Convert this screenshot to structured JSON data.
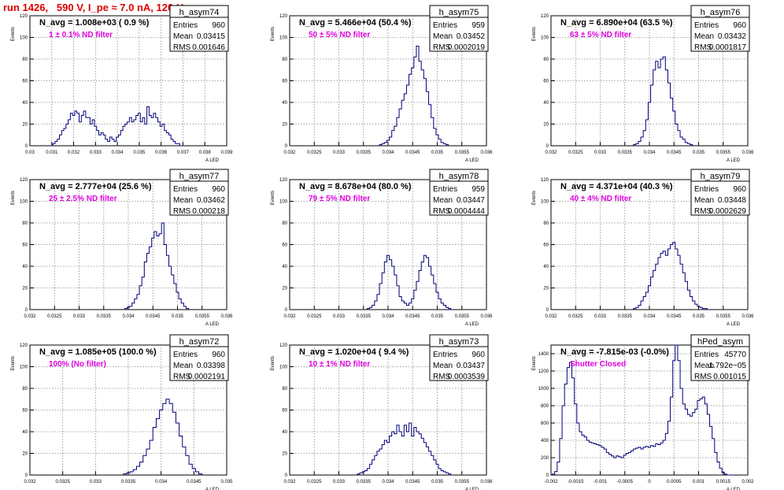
{
  "page": {
    "title": "run 1426,   590 V, I_pe ≈ 7.0 nA, 120 Hz"
  },
  "colors": {
    "hist_line": "#00007a",
    "label_magenta": "#e000e0",
    "title_red": "#e00000",
    "grid": "#888888"
  },
  "chart_data": [
    {
      "type": "histogram",
      "hist_name": "h_asym74",
      "navg_label": "N_avg = 1.008e+03 ( 0.9 %)",
      "filter_label": "1 ± 0.1% ND filter",
      "ylabel": "Events",
      "xlabel": "A_LED",
      "xlim": [
        0.03,
        0.039
      ],
      "ylim": [
        0,
        120
      ],
      "xticks": [
        0.03,
        0.031,
        0.032,
        0.033,
        0.034,
        0.035,
        0.036,
        0.037,
        0.038,
        0.039
      ],
      "xtick_labels": [
        "0.03",
        "0.031",
        "0.032",
        "0.033",
        "0.034",
        "0.035",
        "0.036",
        "0.037",
        "0.038",
        "0.039"
      ],
      "yticks": [
        0,
        20,
        40,
        60,
        80,
        100,
        120
      ],
      "stats": {
        "Entries": "960",
        "Mean": "0.03415",
        "RMS": "0.001646"
      },
      "x": [
        0.031,
        0.0311,
        0.0312,
        0.0313,
        0.0314,
        0.0315,
        0.0316,
        0.0317,
        0.0318,
        0.0319,
        0.032,
        0.0321,
        0.0322,
        0.0323,
        0.0324,
        0.0325,
        0.0326,
        0.0327,
        0.0328,
        0.0329,
        0.033,
        0.0331,
        0.0332,
        0.0333,
        0.0334,
        0.0335,
        0.0336,
        0.0337,
        0.0338,
        0.0339,
        0.034,
        0.0341,
        0.0342,
        0.0343,
        0.0344,
        0.0345,
        0.0346,
        0.0347,
        0.0348,
        0.0349,
        0.035,
        0.0351,
        0.0352,
        0.0353,
        0.0354,
        0.0355,
        0.0356,
        0.0357,
        0.0358,
        0.0359,
        0.036,
        0.0361,
        0.0362,
        0.0363,
        0.0364,
        0.0365,
        0.0366,
        0.0367,
        0.0368,
        0.0369,
        0.037
      ],
      "values": [
        0,
        2,
        4,
        6,
        10,
        14,
        16,
        20,
        24,
        30,
        28,
        32,
        30,
        22,
        28,
        32,
        26,
        26,
        20,
        24,
        18,
        14,
        10,
        12,
        10,
        6,
        4,
        8,
        6,
        4,
        8,
        10,
        14,
        18,
        20,
        22,
        26,
        22,
        24,
        28,
        30,
        22,
        26,
        20,
        36,
        28,
        26,
        30,
        26,
        22,
        18,
        20,
        14,
        12,
        10,
        6,
        4,
        2,
        2,
        0,
        0
      ]
    },
    {
      "type": "histogram",
      "hist_name": "h_asym75",
      "navg_label": "N_avg = 5.466e+04 (50.4 %)",
      "filter_label": "50 ± 5% ND filter",
      "ylabel": "Events",
      "xlabel": "A_LED",
      "xlim": [
        0.032,
        0.036
      ],
      "ylim": [
        0,
        120
      ],
      "xticks": [
        0.032,
        0.0325,
        0.033,
        0.0335,
        0.034,
        0.0345,
        0.035,
        0.0355,
        0.036
      ],
      "xtick_labels": [
        "0.032",
        "0.0325",
        "0.033",
        "0.0335",
        "0.034",
        "0.0345",
        "0.035",
        "0.0355",
        "0.036"
      ],
      "yticks": [
        0,
        20,
        40,
        60,
        80,
        100,
        120
      ],
      "stats": {
        "Entries": "959",
        "Mean": "0.03452",
        "RMS": "0.0002019"
      },
      "x": [
        0.03385,
        0.0339,
        0.03395,
        0.034,
        0.03405,
        0.0341,
        0.03415,
        0.0342,
        0.03425,
        0.0343,
        0.03435,
        0.0344,
        0.03445,
        0.0345,
        0.03455,
        0.0346,
        0.03465,
        0.0347,
        0.03475,
        0.0348,
        0.03485,
        0.0349,
        0.03495,
        0.035,
        0.03505,
        0.0351,
        0.03515,
        0.0352
      ],
      "values": [
        1,
        2,
        3,
        5,
        8,
        14,
        18,
        26,
        34,
        42,
        48,
        56,
        66,
        72,
        82,
        92,
        78,
        70,
        62,
        50,
        38,
        26,
        16,
        10,
        6,
        3,
        2,
        1
      ]
    },
    {
      "type": "histogram",
      "hist_name": "h_asym76",
      "navg_label": "N_avg = 6.890e+04 (63.5 %)",
      "filter_label": "63 ± 5% ND filter",
      "ylabel": "Events",
      "xlabel": "A_LED",
      "xlim": [
        0.032,
        0.036
      ],
      "ylim": [
        0,
        120
      ],
      "xticks": [
        0.032,
        0.0325,
        0.033,
        0.0335,
        0.034,
        0.0345,
        0.035,
        0.0355,
        0.036
      ],
      "xtick_labels": [
        "0.032",
        "0.0325",
        "0.033",
        "0.0335",
        "0.034",
        "0.0345",
        "0.035",
        "0.0355",
        "0.036"
      ],
      "yticks": [
        0,
        20,
        40,
        60,
        80,
        100,
        120
      ],
      "stats": {
        "Entries": "960",
        "Mean": "0.03432",
        "RMS": "0.0001817"
      },
      "x": [
        0.0337,
        0.03375,
        0.0338,
        0.03385,
        0.0339,
        0.03395,
        0.034,
        0.03405,
        0.0341,
        0.03415,
        0.0342,
        0.03425,
        0.0343,
        0.03435,
        0.0344,
        0.03445,
        0.0345,
        0.03455,
        0.0346,
        0.03465,
        0.0347,
        0.03475,
        0.0348,
        0.03485
      ],
      "values": [
        1,
        2,
        4,
        8,
        14,
        24,
        40,
        56,
        70,
        78,
        72,
        80,
        82,
        70,
        58,
        44,
        32,
        20,
        14,
        8,
        6,
        3,
        2,
        1
      ]
    },
    {
      "type": "histogram",
      "hist_name": "h_asym77",
      "navg_label": "N_avg = 2.777e+04 (25.6 %)",
      "filter_label": "25 ± 2.5% ND filter",
      "ylabel": "Events",
      "xlabel": "A_LED",
      "xlim": [
        0.032,
        0.036
      ],
      "ylim": [
        0,
        120
      ],
      "xticks": [
        0.032,
        0.0325,
        0.033,
        0.0335,
        0.034,
        0.0345,
        0.035,
        0.0355,
        0.036
      ],
      "xtick_labels": [
        "0.032",
        "0.0325",
        "0.033",
        "0.0335",
        "0.034",
        "0.0345",
        "0.035",
        "0.0355",
        "0.036"
      ],
      "yticks": [
        0,
        20,
        40,
        60,
        80,
        100,
        120
      ],
      "stats": {
        "Entries": "960",
        "Mean": "0.03462",
        "RMS": "0.000218"
      },
      "x": [
        0.03395,
        0.034,
        0.03405,
        0.0341,
        0.03415,
        0.0342,
        0.03425,
        0.0343,
        0.03435,
        0.0344,
        0.03445,
        0.0345,
        0.03455,
        0.0346,
        0.03465,
        0.0347,
        0.03475,
        0.0348,
        0.03485,
        0.0349,
        0.03495,
        0.035,
        0.03505,
        0.0351,
        0.03515,
        0.0352
      ],
      "values": [
        1,
        2,
        3,
        6,
        10,
        14,
        22,
        30,
        44,
        52,
        58,
        66,
        72,
        68,
        70,
        80,
        60,
        50,
        40,
        32,
        24,
        16,
        10,
        6,
        3,
        1
      ]
    },
    {
      "type": "histogram",
      "hist_name": "h_asym78",
      "navg_label": "N_avg = 8.678e+04 (80.0 %)",
      "filter_label": "79 ± 5% ND filter",
      "ylabel": "Events",
      "xlabel": "A_LED",
      "xlim": [
        0.032,
        0.036
      ],
      "ylim": [
        0,
        120
      ],
      "xticks": [
        0.032,
        0.0325,
        0.033,
        0.0335,
        0.034,
        0.0345,
        0.035,
        0.0355,
        0.036
      ],
      "xtick_labels": [
        "0.032",
        "0.0325",
        "0.033",
        "0.0335",
        "0.034",
        "0.0345",
        "0.035",
        "0.0355",
        "0.036"
      ],
      "yticks": [
        0,
        20,
        40,
        60,
        80,
        100,
        120
      ],
      "stats": {
        "Entries": "959",
        "Mean": "0.03447",
        "RMS": "0.0004444"
      },
      "x": [
        0.0336,
        0.03365,
        0.0337,
        0.03375,
        0.0338,
        0.03385,
        0.0339,
        0.03395,
        0.034,
        0.03405,
        0.0341,
        0.03415,
        0.0342,
        0.03425,
        0.0343,
        0.03435,
        0.0344,
        0.03445,
        0.0345,
        0.03455,
        0.0346,
        0.03465,
        0.0347,
        0.03475,
        0.0348,
        0.03485,
        0.0349,
        0.03495,
        0.035,
        0.03505,
        0.0351,
        0.03515,
        0.0352,
        0.03525,
        0.0353
      ],
      "values": [
        1,
        2,
        4,
        8,
        14,
        24,
        34,
        44,
        50,
        46,
        40,
        32,
        22,
        12,
        8,
        6,
        4,
        6,
        10,
        18,
        26,
        36,
        44,
        50,
        48,
        40,
        32,
        24,
        16,
        10,
        6,
        4,
        2,
        1,
        0
      ]
    },
    {
      "type": "histogram",
      "hist_name": "h_asym79",
      "navg_label": "N_avg = 4.371e+04 (40.3 %)",
      "filter_label": "40 ± 4% ND filter",
      "ylabel": "Events",
      "xlabel": "A_LED",
      "xlim": [
        0.032,
        0.036
      ],
      "ylim": [
        0,
        120
      ],
      "xticks": [
        0.032,
        0.0325,
        0.033,
        0.0335,
        0.034,
        0.0345,
        0.035,
        0.0355,
        0.036
      ],
      "xtick_labels": [
        "0.032",
        "0.0325",
        "0.033",
        "0.0335",
        "0.034",
        "0.0345",
        "0.035",
        "0.0355",
        "0.036"
      ],
      "yticks": [
        0,
        20,
        40,
        60,
        80,
        100,
        120
      ],
      "stats": {
        "Entries": "960",
        "Mean": "0.03448",
        "RMS": "0.0002629"
      },
      "x": [
        0.0337,
        0.03375,
        0.0338,
        0.03385,
        0.0339,
        0.03395,
        0.034,
        0.03405,
        0.0341,
        0.03415,
        0.0342,
        0.03425,
        0.0343,
        0.03435,
        0.0344,
        0.03445,
        0.0345,
        0.03455,
        0.0346,
        0.03465,
        0.0347,
        0.03475,
        0.0348,
        0.03485,
        0.0349,
        0.03495,
        0.035,
        0.03505,
        0.0351,
        0.03515,
        0.0352
      ],
      "values": [
        1,
        2,
        4,
        8,
        12,
        16,
        22,
        30,
        36,
        42,
        48,
        52,
        54,
        50,
        56,
        60,
        62,
        56,
        50,
        42,
        34,
        26,
        18,
        12,
        8,
        5,
        3,
        2,
        1,
        1,
        0
      ]
    },
    {
      "type": "histogram",
      "hist_name": "h_asym72",
      "navg_label": "N_avg = 1.085e+05 (100.0 %)",
      "filter_label": "100% (No filter)",
      "ylabel": "Events",
      "xlabel": "A_LED",
      "xlim": [
        0.032,
        0.035
      ],
      "ylim": [
        0,
        120
      ],
      "xticks": [
        0.032,
        0.0325,
        0.033,
        0.0335,
        0.034,
        0.0345,
        0.035
      ],
      "xtick_labels": [
        "0.032",
        "0.0325",
        "0.033",
        "0.0335",
        "0.034",
        "0.0345",
        "0.035"
      ],
      "yticks": [
        0,
        20,
        40,
        60,
        80,
        100,
        120
      ],
      "stats": {
        "Entries": "960",
        "Mean": "0.03398",
        "RMS": "0.0002191"
      },
      "x": [
        0.03345,
        0.0335,
        0.03355,
        0.0336,
        0.03365,
        0.0337,
        0.03375,
        0.0338,
        0.03385,
        0.0339,
        0.03395,
        0.034,
        0.03405,
        0.0341,
        0.03415,
        0.0342,
        0.03425,
        0.0343,
        0.03435,
        0.0344,
        0.03445,
        0.0345,
        0.03455,
        0.0346
      ],
      "values": [
        1,
        2,
        3,
        5,
        8,
        12,
        18,
        24,
        32,
        44,
        52,
        60,
        66,
        70,
        66,
        58,
        48,
        36,
        26,
        18,
        10,
        6,
        3,
        1
      ]
    },
    {
      "type": "histogram",
      "hist_name": "h_asym73",
      "navg_label": "N_avg = 1.020e+04 ( 9.4 %)",
      "filter_label": "10 ± 1% ND filter",
      "ylabel": "Events",
      "xlabel": "A_LED",
      "xlim": [
        0.032,
        0.036
      ],
      "ylim": [
        0,
        120
      ],
      "xticks": [
        0.032,
        0.0325,
        0.033,
        0.0335,
        0.034,
        0.0345,
        0.035,
        0.0355,
        0.036
      ],
      "xtick_labels": [
        "0.032",
        "0.0325",
        "0.033",
        "0.0335",
        "0.034",
        "0.0345",
        "0.035",
        "0.0355",
        "0.036"
      ],
      "yticks": [
        0,
        20,
        40,
        60,
        80,
        100,
        120
      ],
      "stats": {
        "Entries": "960",
        "Mean": "0.03437",
        "RMS": "0.0003539"
      },
      "x": [
        0.0334,
        0.03345,
        0.0335,
        0.03355,
        0.0336,
        0.03365,
        0.0337,
        0.03375,
        0.0338,
        0.03385,
        0.0339,
        0.03395,
        0.034,
        0.03405,
        0.0341,
        0.03415,
        0.0342,
        0.03425,
        0.0343,
        0.03435,
        0.0344,
        0.03445,
        0.0345,
        0.03455,
        0.0346,
        0.03465,
        0.0347,
        0.03475,
        0.0348,
        0.03485,
        0.0349,
        0.03495,
        0.035,
        0.03505,
        0.0351,
        0.03515,
        0.0352,
        0.03525,
        0.0353
      ],
      "values": [
        1,
        2,
        3,
        4,
        6,
        10,
        14,
        18,
        22,
        24,
        28,
        32,
        30,
        36,
        40,
        38,
        46,
        40,
        36,
        46,
        40,
        48,
        36,
        44,
        40,
        38,
        34,
        30,
        26,
        22,
        18,
        14,
        10,
        6,
        4,
        3,
        2,
        1,
        0
      ]
    },
    {
      "type": "histogram",
      "hist_name": "hPed_asym",
      "navg_label": "N_avg = -7.815e-03 (-0.0%)",
      "filter_label": "Shutter Closed",
      "ylabel": "Events",
      "xlabel": "A_LED",
      "xlim": [
        -0.002,
        0.002
      ],
      "ylim": [
        0,
        1500
      ],
      "xticks": [
        -0.002,
        -0.0015,
        -0.001,
        -0.0005,
        0,
        0.0005,
        0.001,
        0.0015,
        0.002
      ],
      "xtick_labels": [
        "-0.002",
        "-0.0015",
        "-0.001",
        "-0.0005",
        "0",
        "0.0005",
        "0.001",
        "0.0015",
        "0.002"
      ],
      "yticks": [
        0,
        200,
        400,
        600,
        800,
        1000,
        1200,
        1400
      ],
      "stats": {
        "Entries": "45770",
        "Mean": "1.792e−05",
        "RMS": "0.001015"
      },
      "x": [
        -0.00195,
        -0.0019,
        -0.00185,
        -0.0018,
        -0.00175,
        -0.0017,
        -0.00165,
        -0.0016,
        -0.00155,
        -0.0015,
        -0.00145,
        -0.0014,
        -0.00135,
        -0.0013,
        -0.00125,
        -0.0012,
        -0.00115,
        -0.0011,
        -0.00105,
        -0.001,
        -0.00095,
        -0.0009,
        -0.00085,
        -0.0008,
        -0.00075,
        -0.0007,
        -0.00065,
        -0.0006,
        -0.00055,
        -0.0005,
        -0.00045,
        -0.0004,
        -0.00035,
        -0.0003,
        -0.00025,
        -0.0002,
        -0.00015,
        -0.0001,
        -5e-05,
        0,
        5e-05,
        0.0001,
        0.00015,
        0.0002,
        0.00025,
        0.0003,
        0.00035,
        0.0004,
        0.00045,
        0.0005,
        0.00055,
        0.0006,
        0.00065,
        0.0007,
        0.00075,
        0.0008,
        0.00085,
        0.0009,
        0.00095,
        0.001,
        0.00105,
        0.0011,
        0.00115,
        0.0012,
        0.00125,
        0.0013,
        0.00135,
        0.0014,
        0.00145,
        0.0015,
        0.00155,
        0.0016,
        0.00165,
        0.0017
      ],
      "values": [
        10,
        40,
        150,
        420,
        800,
        1050,
        1240,
        1300,
        1120,
        820,
        600,
        500,
        460,
        440,
        400,
        380,
        370,
        360,
        350,
        340,
        320,
        300,
        260,
        240,
        220,
        200,
        220,
        210,
        200,
        230,
        250,
        260,
        280,
        300,
        310,
        320,
        300,
        320,
        330,
        320,
        340,
        330,
        360,
        350,
        370,
        400,
        480,
        620,
        900,
        1320,
        1500,
        1320,
        1000,
        820,
        760,
        700,
        680,
        720,
        760,
        860,
        880,
        900,
        820,
        700,
        560,
        420,
        260,
        150,
        80,
        30,
        10,
        0,
        0,
        0
      ]
    }
  ]
}
